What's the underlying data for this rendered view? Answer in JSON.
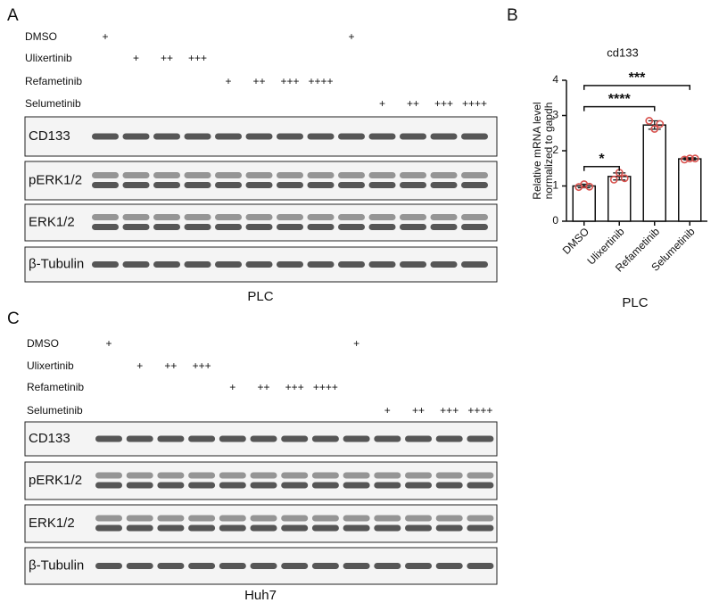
{
  "panels": {
    "a": {
      "label": "A",
      "cell_line": "PLC",
      "treatments": [
        {
          "name": "DMSO",
          "marks": [
            "+",
            null,
            null,
            null,
            null,
            null,
            null,
            null,
            "+",
            null,
            null,
            null,
            null
          ]
        },
        {
          "name": "Ulixertinib",
          "marks": [
            null,
            "+",
            "++",
            "+++",
            null,
            null,
            null,
            null,
            null,
            null,
            null,
            null,
            null
          ]
        },
        {
          "name": "Refametinib",
          "marks": [
            null,
            null,
            null,
            null,
            "+",
            "++",
            "+++",
            "++++",
            null,
            null,
            null,
            null,
            null
          ]
        },
        {
          "name": "Selumetinib",
          "marks": [
            null,
            null,
            null,
            null,
            null,
            null,
            null,
            null,
            null,
            "+",
            "++",
            "+++",
            "++++"
          ]
        }
      ],
      "blots": [
        "CD133",
        "pERK1/2",
        "ERK1/2",
        "β-Tubulin"
      ]
    },
    "b": {
      "label": "B"
    },
    "c": {
      "label": "C",
      "cell_line": "Huh7",
      "treatments": [
        {
          "name": "DMSO",
          "marks": [
            "+",
            null,
            null,
            null,
            null,
            null,
            null,
            null,
            "+",
            null,
            null,
            null,
            null
          ]
        },
        {
          "name": "Ulixertinib",
          "marks": [
            null,
            "+",
            "++",
            "+++",
            null,
            null,
            null,
            null,
            null,
            null,
            null,
            null,
            null
          ]
        },
        {
          "name": "Refametinib",
          "marks": [
            null,
            null,
            null,
            null,
            "+",
            "++",
            "+++",
            "++++",
            null,
            null,
            null,
            null,
            null
          ]
        },
        {
          "name": "Selumetinib",
          "marks": [
            null,
            null,
            null,
            null,
            null,
            null,
            null,
            null,
            null,
            "+",
            "++",
            "+++",
            "++++"
          ]
        }
      ],
      "blots": [
        "CD133",
        "pERK1/2",
        "ERK1/2",
        "β-Tubulin"
      ]
    }
  },
  "chart_data": {
    "type": "bar",
    "title": "cd133",
    "categories": [
      "DMSO",
      "Ulixertinib",
      "Refametinib",
      "Selumetinib"
    ],
    "values": [
      1.0,
      1.27,
      2.73,
      1.77
    ],
    "errors": [
      0.05,
      0.1,
      0.12,
      0.03
    ],
    "points": [
      [
        0.97,
        1.05,
        0.98
      ],
      [
        1.18,
        1.38,
        1.22
      ],
      [
        2.85,
        2.62,
        2.76
      ],
      [
        1.75,
        1.78,
        1.78
      ]
    ],
    "color": "#ffffff",
    "point_color": "#d9534f",
    "ylim": [
      0,
      4
    ],
    "yticks": [
      0,
      1,
      2,
      3,
      4
    ],
    "ylabel": [
      "Relative mRNA level",
      "normalized to gapdh"
    ],
    "xlabel": "PLC",
    "significance": [
      {
        "groups": [
          "DMSO",
          "Ulixertinib"
        ],
        "label": "*",
        "y": 1.55
      },
      {
        "groups": [
          "DMSO",
          "Refametinib"
        ],
        "label": "****",
        "y": 3.25
      },
      {
        "groups": [
          "DMSO",
          "Selumetinib"
        ],
        "label": "***",
        "y": 3.85
      }
    ]
  }
}
